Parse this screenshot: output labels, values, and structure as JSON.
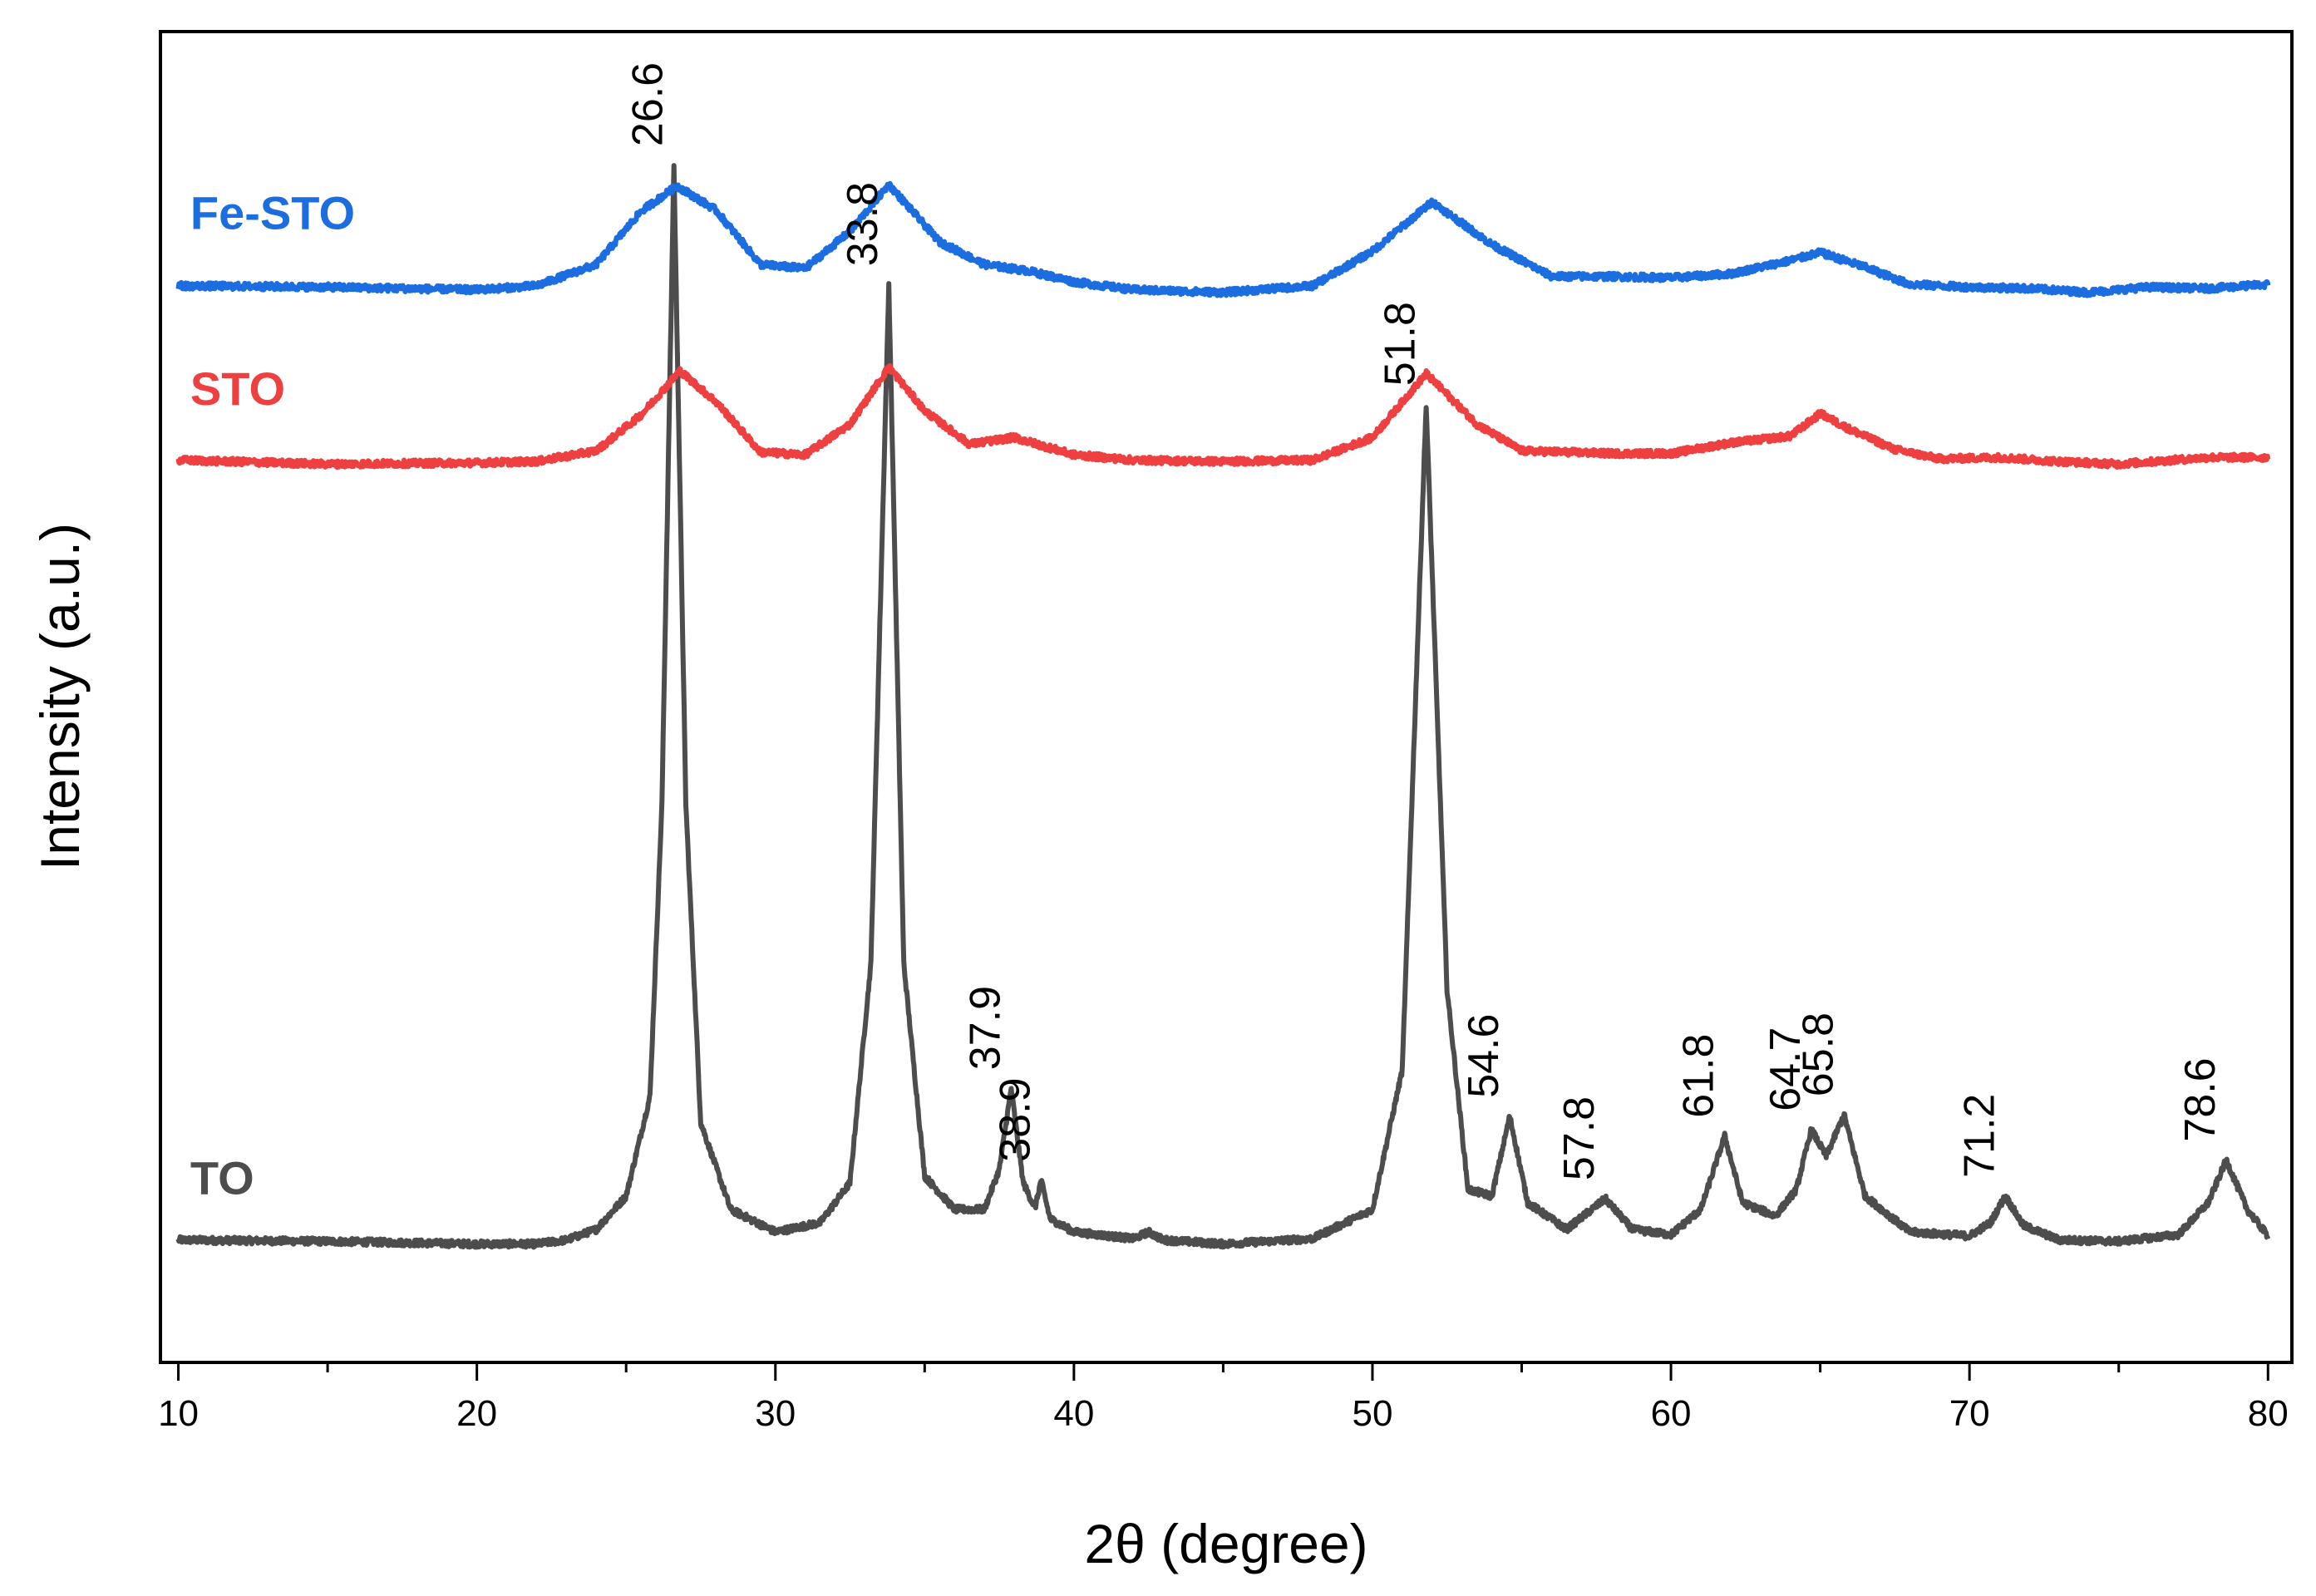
{
  "chart_data": {
    "type": "line",
    "title": "",
    "xlabel": "2θ (degree)",
    "ylabel": "Intensity (a.u.)",
    "xlim": [
      9.4,
      80.8
    ],
    "ylim": [
      0,
      100
    ],
    "x_ticks": [
      10,
      20,
      30,
      40,
      50,
      60,
      70,
      80
    ],
    "x_tick_labels": [
      "10",
      "20",
      "30",
      "40",
      "50",
      "60",
      "70",
      "80"
    ],
    "x_minor_step": 5,
    "grid": false,
    "series": [
      {
        "name": "TO",
        "label": "TO",
        "color": "#4d4d4d",
        "baseline": 8.9,
        "label_x": 10.4,
        "label_y": 13.9,
        "points": [
          [
            10,
            9.2
          ],
          [
            15,
            9.1
          ],
          [
            20,
            8.9
          ],
          [
            22,
            8.9
          ],
          [
            23,
            9.2
          ],
          [
            24,
            10
          ],
          [
            25,
            12.5
          ],
          [
            25.8,
            20
          ],
          [
            26.2,
            42
          ],
          [
            26.6,
            90
          ],
          [
            27,
            42
          ],
          [
            27.5,
            18
          ],
          [
            28.5,
            11.5
          ],
          [
            30,
            9.8
          ],
          [
            31.5,
            10.5
          ],
          [
            32.5,
            13.5
          ],
          [
            33.2,
            30
          ],
          [
            33.8,
            81
          ],
          [
            34.3,
            30
          ],
          [
            35,
            14
          ],
          [
            36,
            11.5
          ],
          [
            37,
            11.5
          ],
          [
            37.5,
            14.5
          ],
          [
            37.9,
            20.6
          ],
          [
            38.3,
            13.5
          ],
          [
            38.7,
            11.6
          ],
          [
            38.9,
            13.7
          ],
          [
            39.2,
            10.8
          ],
          [
            40,
            9.8
          ],
          [
            42,
            9.3
          ],
          [
            42.5,
            9.8
          ],
          [
            43,
            9.2
          ],
          [
            45,
            8.9
          ],
          [
            48,
            9.3
          ],
          [
            50,
            11.5
          ],
          [
            51,
            22
          ],
          [
            51.8,
            72
          ],
          [
            52.5,
            28
          ],
          [
            53.2,
            13
          ],
          [
            54,
            12.5
          ],
          [
            54.6,
            18.5
          ],
          [
            55.2,
            12
          ],
          [
            56.5,
            10
          ],
          [
            57.8,
            12.3
          ],
          [
            58.7,
            10
          ],
          [
            60,
            9.6
          ],
          [
            61,
            11.5
          ],
          [
            61.8,
            17
          ],
          [
            62.4,
            12
          ],
          [
            63.5,
            11
          ],
          [
            64.2,
            13
          ],
          [
            64.7,
            17.5
          ],
          [
            65.2,
            15.5
          ],
          [
            65.8,
            18.6
          ],
          [
            66.5,
            12.5
          ],
          [
            68,
            9.8
          ],
          [
            70,
            9.5
          ],
          [
            70.7,
            10.5
          ],
          [
            71.2,
            12.5
          ],
          [
            71.8,
            10.3
          ],
          [
            73,
            9.2
          ],
          [
            75,
            9.1
          ],
          [
            77,
            9.6
          ],
          [
            78,
            12
          ],
          [
            78.6,
            15.2
          ],
          [
            79.3,
            11.5
          ],
          [
            80,
            9.5
          ]
        ]
      },
      {
        "name": "STO",
        "label": "STO",
        "color": "#ee4040",
        "baseline": 67.6,
        "label_x": 10.4,
        "label_y": 73.2,
        "points": [
          [
            10,
            67.8
          ],
          [
            15,
            67.5
          ],
          [
            20,
            67.6
          ],
          [
            22,
            67.7
          ],
          [
            24,
            68.5
          ],
          [
            25.5,
            71.2
          ],
          [
            26.8,
            74.5
          ],
          [
            28,
            72.2
          ],
          [
            29.5,
            68.4
          ],
          [
            31,
            68.2
          ],
          [
            32.5,
            70.5
          ],
          [
            33.8,
            74.8
          ],
          [
            35,
            71.5
          ],
          [
            36.5,
            69
          ],
          [
            38,
            69.5
          ],
          [
            40,
            68.2
          ],
          [
            42,
            67.8
          ],
          [
            45,
            67.7
          ],
          [
            48,
            67.8
          ],
          [
            50,
            69.5
          ],
          [
            51.8,
            74.3
          ],
          [
            53.5,
            70.5
          ],
          [
            55,
            68.5
          ],
          [
            58,
            68.3
          ],
          [
            60,
            68.3
          ],
          [
            62,
            69.1
          ],
          [
            64,
            69.6
          ],
          [
            65,
            71.3
          ],
          [
            66,
            70.1
          ],
          [
            67.5,
            68.6
          ],
          [
            69,
            67.9
          ],
          [
            71,
            68
          ],
          [
            73,
            67.7
          ],
          [
            75,
            67.5
          ],
          [
            78,
            68
          ],
          [
            80,
            68
          ]
        ]
      },
      {
        "name": "Fe-STO",
        "label": "Fe-STO",
        "color": "#1c6ee0",
        "baseline": 80.6,
        "label_x": 10.4,
        "label_y": 86.4,
        "points": [
          [
            10,
            80.9
          ],
          [
            15,
            80.8
          ],
          [
            20,
            80.6
          ],
          [
            22,
            80.9
          ],
          [
            24,
            82.5
          ],
          [
            25.5,
            86.5
          ],
          [
            26.7,
            88.4
          ],
          [
            28,
            86.6
          ],
          [
            29.5,
            82.5
          ],
          [
            31,
            82.2
          ],
          [
            32.5,
            85
          ],
          [
            33.8,
            88.5
          ],
          [
            35.5,
            84.2
          ],
          [
            37,
            82.5
          ],
          [
            38.5,
            82
          ],
          [
            40,
            81.2
          ],
          [
            42,
            80.6
          ],
          [
            45,
            80.4
          ],
          [
            48,
            80.9
          ],
          [
            50,
            83.5
          ],
          [
            52,
            87.2
          ],
          [
            54,
            84
          ],
          [
            56,
            81.6
          ],
          [
            58,
            81.6
          ],
          [
            60,
            81.5
          ],
          [
            62,
            81.8
          ],
          [
            64,
            82.8
          ],
          [
            65,
            83.4
          ],
          [
            66.5,
            82.3
          ],
          [
            68,
            81
          ],
          [
            70,
            80.8
          ],
          [
            72,
            80.7
          ],
          [
            74,
            80.4
          ],
          [
            76,
            80.8
          ],
          [
            78,
            80.7
          ],
          [
            80,
            81
          ]
        ]
      }
    ],
    "annotations": [
      {
        "text": "26.6",
        "x": 26.6,
        "y": 90
      },
      {
        "text": "33.8",
        "x": 33.8,
        "y": 81
      },
      {
        "text": "37.9",
        "x": 37.9,
        "y": 20.6
      },
      {
        "text": "38.9",
        "x": 38.9,
        "y": 13.7
      },
      {
        "text": "51.8",
        "x": 51.8,
        "y": 72
      },
      {
        "text": "54.6",
        "x": 54.6,
        "y": 18.5
      },
      {
        "text": "57.8",
        "x": 57.8,
        "y": 12.3
      },
      {
        "text": "61.8",
        "x": 61.8,
        "y": 17
      },
      {
        "text": "64.7",
        "x": 64.7,
        "y": 17.5
      },
      {
        "text": "65.8",
        "x": 65.8,
        "y": 18.6
      },
      {
        "text": "71.2",
        "x": 71.2,
        "y": 12.5
      },
      {
        "text": "78.6",
        "x": 78.6,
        "y": 15.2
      }
    ]
  }
}
